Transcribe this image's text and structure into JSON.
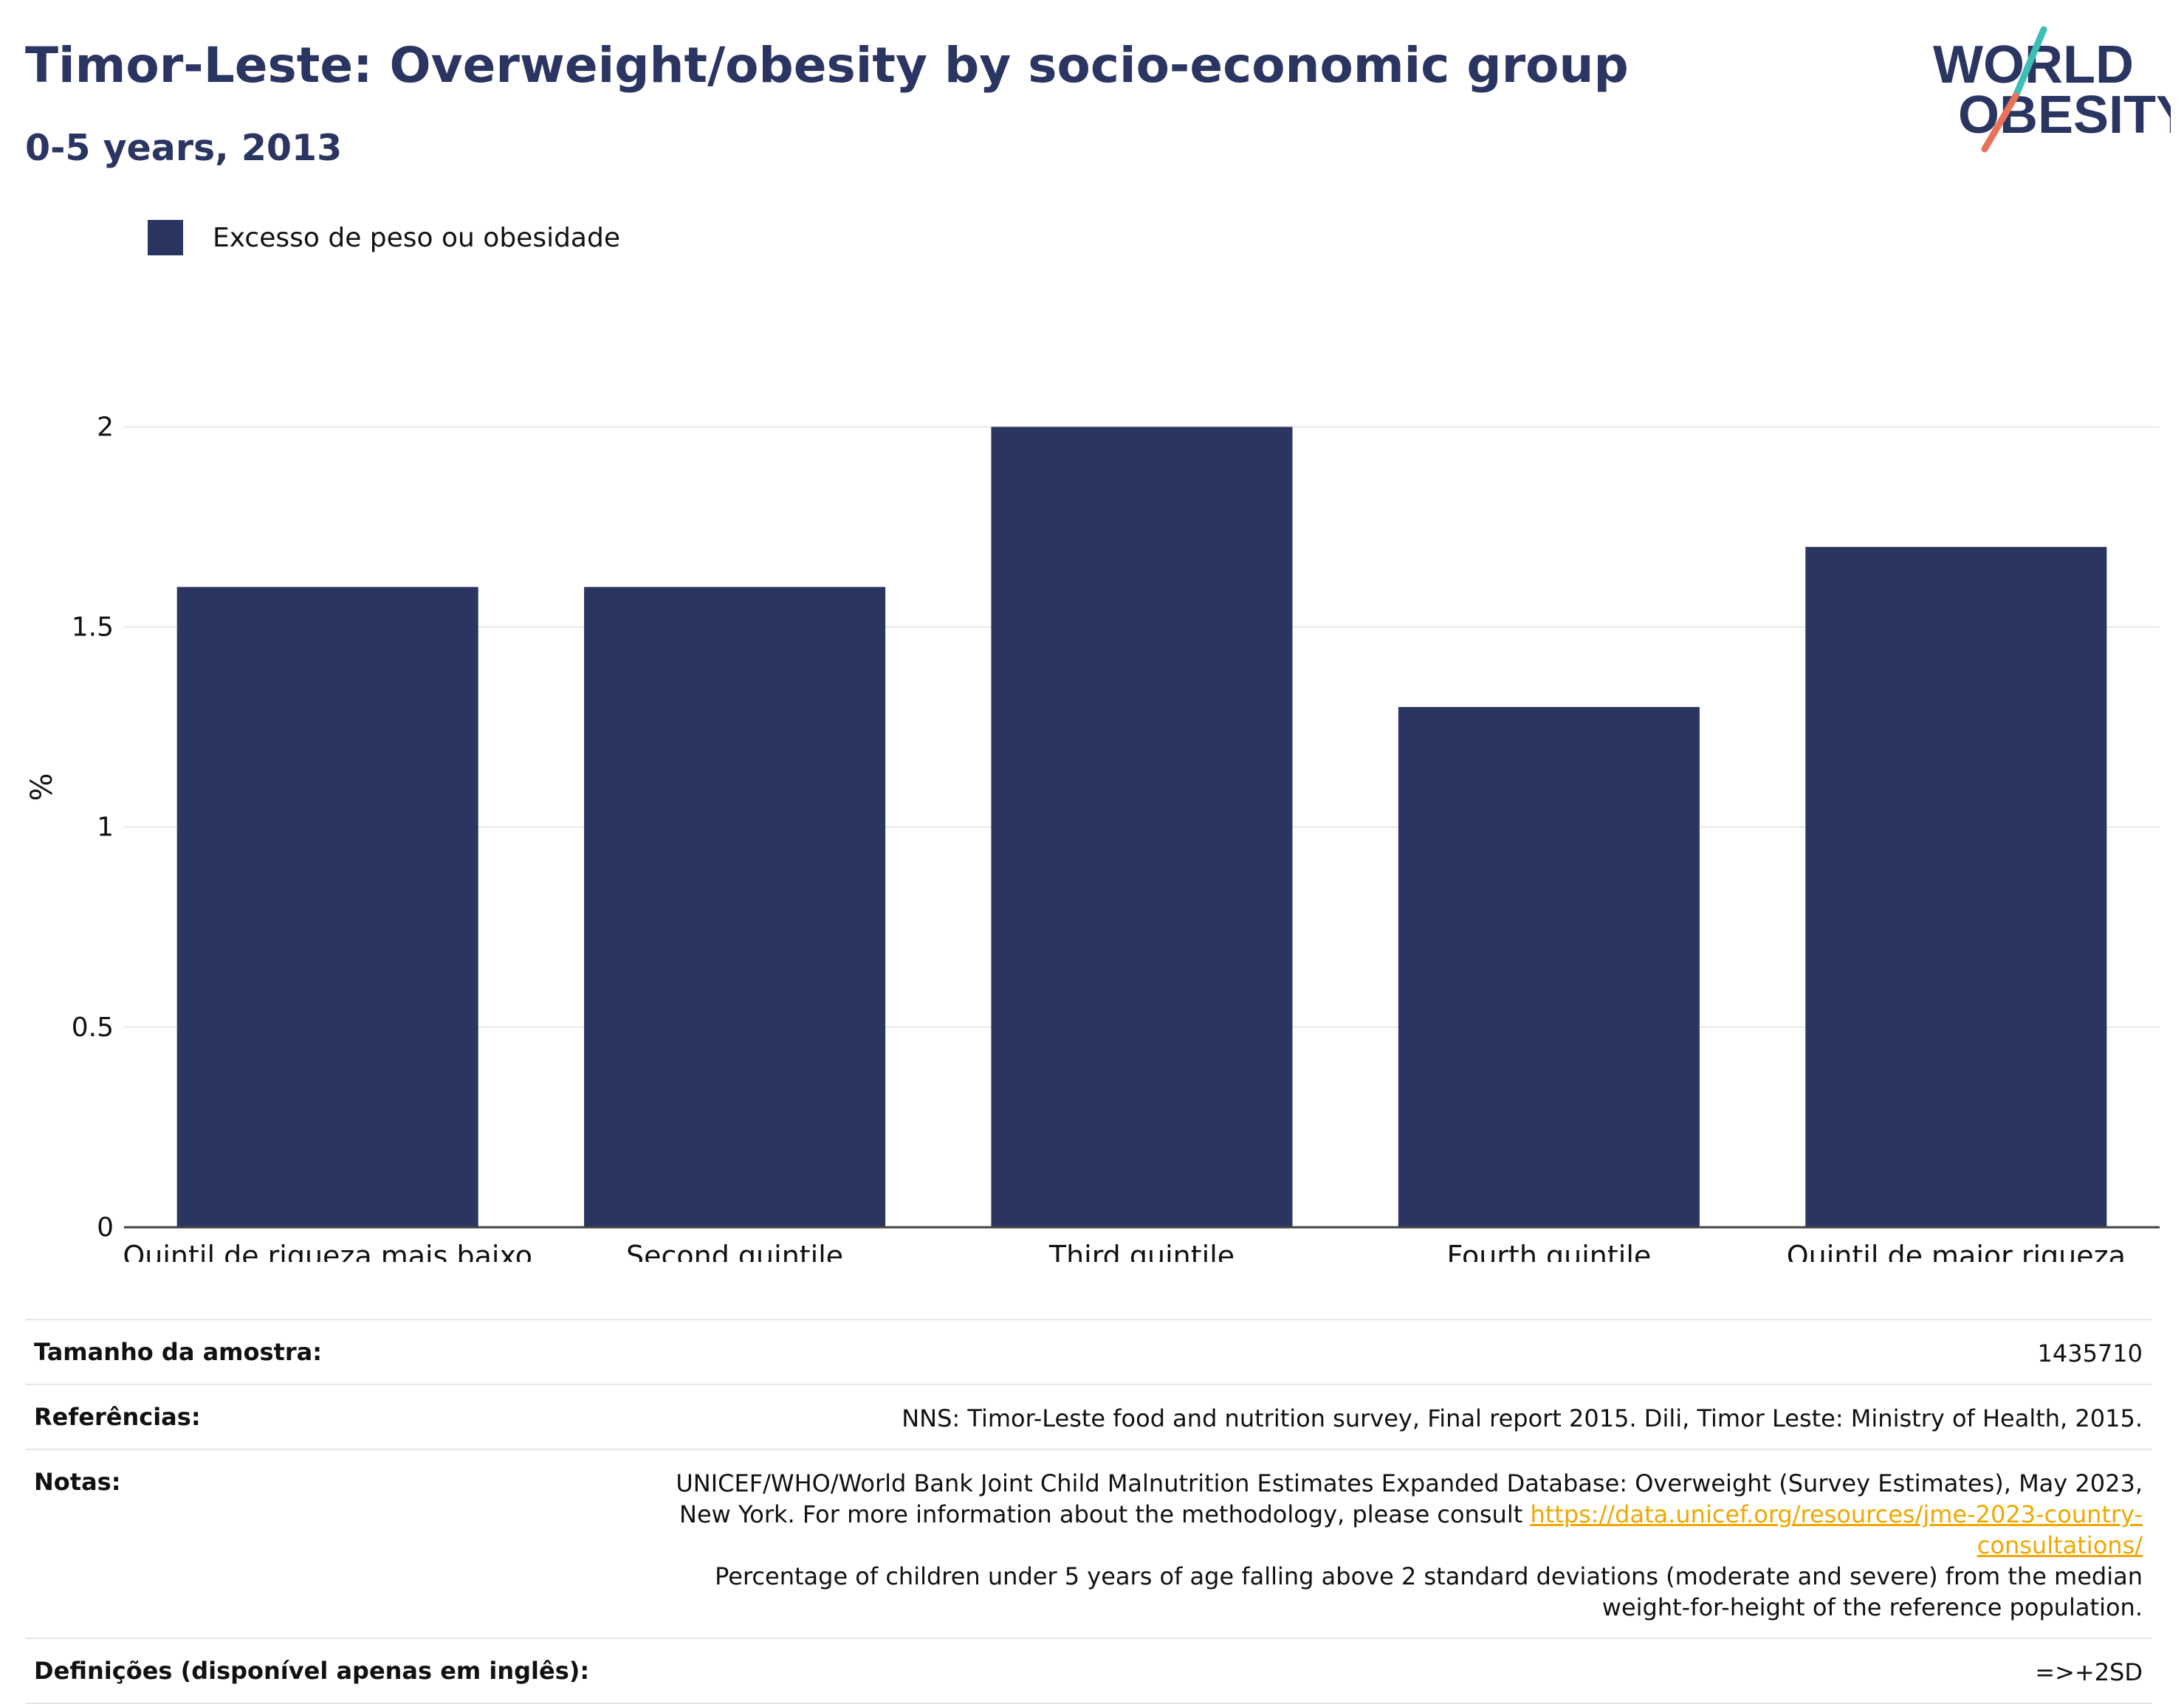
{
  "header": {
    "title": "Timor-Leste: Overweight/obesity by socio-economic group",
    "subtitle": "0-5 years, 2013"
  },
  "logo": {
    "line1": "WORLD",
    "line2": "OBESITY",
    "icon": "world-obesity-logo"
  },
  "colors": {
    "bar": "#2a3562",
    "title": "#2a3562",
    "logo_slash_top": "#3dbfb8",
    "logo_slash_bottom": "#e8735a",
    "link": "#f0a800"
  },
  "chart_data": {
    "type": "bar",
    "categories": [
      "Quintil de riqueza mais baixo",
      "Second quintile",
      "Third quintile",
      "Fourth quintile",
      "Quintil de maior riqueza"
    ],
    "series": [
      {
        "name": "Excesso de peso ou obesidade",
        "values": [
          1.6,
          1.6,
          2.0,
          1.3,
          1.7
        ]
      }
    ],
    "ylabel": "%",
    "xlabel": "",
    "ylim": [
      0,
      2.2
    ],
    "yticks": [
      "0",
      "0.5",
      "1",
      "1.5",
      "2"
    ],
    "grid": true,
    "legend": "top-left"
  },
  "meta": {
    "sample_label": "Tamanho da amostra:",
    "sample_value": "1435710",
    "refs_label": "Referências:",
    "refs_value": "NNS: Timor-Leste food and nutrition survey, Final report 2015. Dili, Timor Leste: Ministry of Health, 2015.",
    "notes_label": "Notas:",
    "notes_text1": "UNICEF/WHO/World Bank Joint Child Malnutrition Estimates Expanded Database: Overweight (Survey Estimates), May 2023, New York. For more information about the methodology, please consult",
    "notes_link": "https://data.unicef.org/resources/jme-2023-country-consultations/",
    "notes_text2": "Percentage of children under 5 years of age falling above 2 standard deviations (moderate and severe) from the median weight-for-height of the reference population.",
    "defs_label": "Definições (disponível apenas em inglês):",
    "defs_value": "=>+2SD"
  }
}
